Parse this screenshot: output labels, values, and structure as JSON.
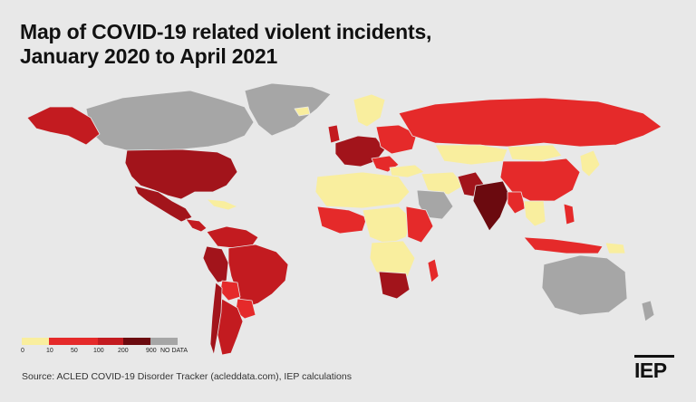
{
  "header": {
    "title_line1": "Map of COVID-19 related violent incidents,",
    "title_line2": "January 2020 to April 2021"
  },
  "legend": {
    "bins": [
      {
        "label": "0",
        "color": "#f9ee9e"
      },
      {
        "label": "10",
        "color": "#e52a2a"
      },
      {
        "label": "50",
        "color": "#e52a2a"
      },
      {
        "label": "100",
        "color": "#c31b20"
      },
      {
        "label": "200",
        "color": "#a2141b"
      },
      {
        "label": "900",
        "color": "#6b0a0f"
      },
      {
        "label": "NO DATA",
        "color": "#a6a6a6"
      }
    ]
  },
  "footer": {
    "source": "Source: ACLED COVID-19 Disorder Tracker (acleddata.com), IEP calculations",
    "logo_text": "IEP"
  },
  "colors": {
    "background": "#e8e8e8",
    "bin_0_10": "#f9ee9e",
    "bin_10_50": "#e52a2a",
    "bin_50_100": "#c31b20",
    "bin_100_200": "#a2141b",
    "bin_200_900": "#6b0a0f",
    "no_data": "#a6a6a6"
  }
}
